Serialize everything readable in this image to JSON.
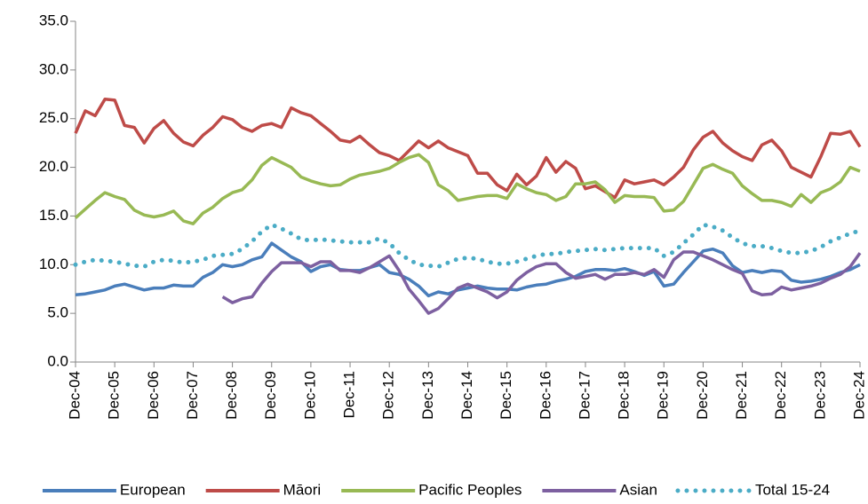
{
  "chart_data": {
    "type": "line",
    "categories": [
      "Dec-04",
      null,
      null,
      null,
      "Dec-05",
      null,
      null,
      null,
      "Dec-06",
      null,
      null,
      null,
      "Dec-07",
      null,
      null,
      null,
      "Dec-08",
      null,
      null,
      null,
      "Dec-09",
      null,
      null,
      null,
      "Dec-10",
      null,
      null,
      null,
      "Dec-11",
      null,
      null,
      null,
      "Dec-12",
      null,
      null,
      null,
      "Dec-13",
      null,
      null,
      null,
      "Dec-14",
      null,
      null,
      null,
      "Dec-15",
      null,
      null,
      null,
      "Dec-16",
      null,
      null,
      null,
      "Dec-17",
      null,
      null,
      null,
      "Dec-18",
      null,
      null,
      null,
      "Dec-19",
      null,
      null,
      null,
      "Dec-20",
      null,
      null,
      null,
      "Dec-21",
      null,
      null,
      null,
      "Dec-22",
      null,
      null,
      null,
      "Dec-23",
      null,
      null,
      null,
      "Dec-24"
    ],
    "series": [
      {
        "name": "European",
        "color": "#4a7ebb",
        "style": "solid",
        "values": [
          6.9,
          7.0,
          7.2,
          7.4,
          7.8,
          8.0,
          7.7,
          7.4,
          7.6,
          7.6,
          7.9,
          7.8,
          7.8,
          8.7,
          9.2,
          10.0,
          9.8,
          10.0,
          10.5,
          10.8,
          12.2,
          11.5,
          10.8,
          10.3,
          9.3,
          9.8,
          10.0,
          9.5,
          9.4,
          9.4,
          9.7,
          10.0,
          9.2,
          9.0,
          8.5,
          7.8,
          6.8,
          7.2,
          7.0,
          7.4,
          7.6,
          7.8,
          7.6,
          7.5,
          7.5,
          7.4,
          7.7,
          7.9,
          8.0,
          8.3,
          8.5,
          8.8,
          9.3,
          9.5,
          9.5,
          9.4,
          9.6,
          9.3,
          8.9,
          9.3,
          7.8,
          8.0,
          9.2,
          10.3,
          11.4,
          11.6,
          11.2,
          9.9,
          9.2,
          9.4,
          9.2,
          9.4,
          9.3,
          8.4,
          8.2,
          8.3,
          8.5,
          8.8,
          9.2,
          9.5,
          10.0
        ]
      },
      {
        "name": "Māori",
        "color": "#be4b48",
        "style": "solid",
        "values": [
          23.5,
          25.8,
          25.3,
          27.0,
          26.9,
          24.3,
          24.1,
          22.5,
          24.0,
          24.8,
          23.5,
          22.6,
          22.2,
          23.3,
          24.1,
          25.2,
          24.9,
          24.1,
          23.7,
          24.3,
          24.5,
          24.1,
          26.1,
          25.6,
          25.3,
          24.5,
          23.7,
          22.8,
          22.6,
          23.2,
          22.3,
          21.5,
          21.2,
          20.7,
          21.7,
          22.7,
          22.0,
          22.7,
          22.0,
          21.6,
          21.2,
          19.4,
          19.4,
          18.2,
          17.6,
          19.3,
          18.2,
          19.1,
          21.0,
          19.5,
          20.6,
          19.9,
          17.8,
          18.1,
          17.5,
          16.9,
          18.7,
          18.3,
          18.5,
          18.7,
          18.2,
          19.0,
          20.0,
          21.8,
          23.1,
          23.7,
          22.5,
          21.7,
          21.1,
          20.7,
          22.3,
          22.8,
          21.7,
          20.0,
          19.5,
          19.0,
          21.1,
          23.5,
          23.4,
          23.7,
          22.1
        ]
      },
      {
        "name": "Pacific Peoples",
        "color": "#98b954",
        "style": "solid",
        "values": [
          14.8,
          15.7,
          16.6,
          17.4,
          17.0,
          16.7,
          15.6,
          15.1,
          14.9,
          15.1,
          15.5,
          14.5,
          14.2,
          15.3,
          15.9,
          16.8,
          17.4,
          17.7,
          18.7,
          20.2,
          21.0,
          20.5,
          20.0,
          19.0,
          18.6,
          18.3,
          18.1,
          18.2,
          18.8,
          19.2,
          19.4,
          19.6,
          19.9,
          20.5,
          21.0,
          21.3,
          20.5,
          18.2,
          17.6,
          16.6,
          16.8,
          17.0,
          17.1,
          17.1,
          16.8,
          18.3,
          17.8,
          17.4,
          17.2,
          16.6,
          17.0,
          18.3,
          18.3,
          18.5,
          17.7,
          16.4,
          17.1,
          17.0,
          17.0,
          16.9,
          15.5,
          15.6,
          16.5,
          18.2,
          19.9,
          20.3,
          19.8,
          19.4,
          18.1,
          17.3,
          16.6,
          16.6,
          16.4,
          16.0,
          17.2,
          16.4,
          17.4,
          17.8,
          18.5,
          20.0,
          19.6
        ]
      },
      {
        "name": "Asian",
        "color": "#7d60a0",
        "style": "solid",
        "values": [
          null,
          null,
          null,
          null,
          null,
          null,
          null,
          null,
          null,
          null,
          null,
          null,
          null,
          null,
          null,
          6.7,
          6.1,
          6.5,
          6.7,
          8.1,
          9.3,
          10.2,
          10.2,
          10.2,
          9.8,
          10.3,
          10.3,
          9.4,
          9.4,
          9.2,
          9.7,
          10.3,
          10.9,
          9.4,
          7.5,
          6.3,
          5.0,
          5.5,
          6.5,
          7.6,
          8.0,
          7.6,
          7.2,
          6.6,
          7.2,
          8.4,
          9.2,
          9.8,
          10.1,
          10.1,
          9.2,
          8.6,
          8.8,
          9.0,
          8.5,
          9.0,
          9.0,
          9.2,
          9.0,
          9.5,
          8.7,
          10.5,
          11.3,
          11.3,
          10.9,
          10.5,
          10.0,
          9.5,
          9.1,
          7.3,
          6.9,
          7.0,
          7.7,
          7.4,
          7.6,
          7.8,
          8.1,
          8.6,
          9.0,
          9.8,
          11.2
        ]
      },
      {
        "name": "Total 15-24",
        "color": "#4bacc6",
        "style": "dotted",
        "values": [
          10.0,
          10.3,
          10.5,
          10.4,
          10.3,
          10.1,
          9.9,
          9.8,
          10.3,
          10.5,
          10.4,
          10.2,
          10.3,
          10.5,
          10.9,
          11.0,
          11.1,
          11.6,
          12.4,
          13.4,
          14.1,
          13.7,
          13.2,
          12.6,
          12.5,
          12.6,
          12.5,
          12.4,
          12.3,
          12.3,
          12.3,
          12.7,
          12.2,
          11.2,
          10.5,
          10.0,
          9.9,
          9.8,
          10.2,
          10.6,
          10.7,
          10.6,
          10.3,
          10.1,
          10.1,
          10.3,
          10.6,
          10.9,
          11.1,
          11.1,
          11.3,
          11.4,
          11.5,
          11.6,
          11.5,
          11.6,
          11.7,
          11.7,
          11.7,
          11.7,
          10.9,
          11.3,
          12.2,
          13.1,
          14.1,
          13.9,
          13.5,
          12.8,
          12.2,
          11.9,
          11.9,
          11.7,
          11.4,
          11.2,
          11.2,
          11.4,
          11.8,
          12.4,
          12.8,
          13.2,
          13.5
        ]
      }
    ],
    "ylim": [
      0,
      35
    ],
    "yticks": [
      {
        "value": 0,
        "label": "0.0"
      },
      {
        "value": 5,
        "label": "5.0"
      },
      {
        "value": 10,
        "label": "10.0"
      },
      {
        "value": 15,
        "label": "15.0"
      },
      {
        "value": 20,
        "label": "20.0"
      },
      {
        "value": 25,
        "label": "25.0"
      },
      {
        "value": 30,
        "label": "30.0"
      },
      {
        "value": 35,
        "label": "35.0"
      }
    ],
    "grid": false,
    "legend": "bottom"
  }
}
